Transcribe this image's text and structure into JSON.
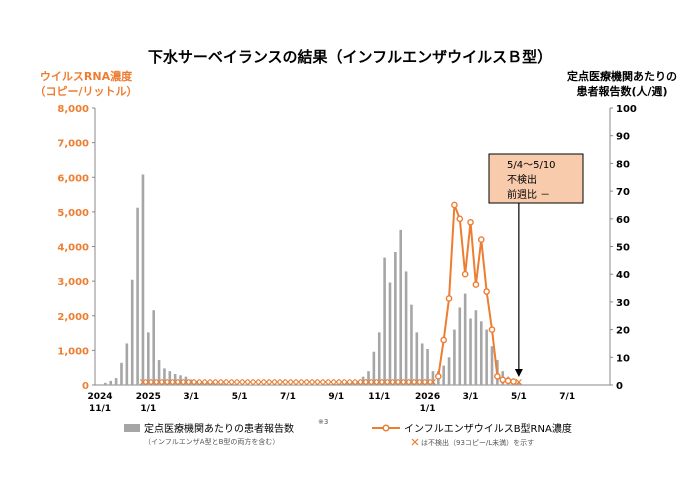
{
  "chart_data": {
    "type": "bar+line",
    "title": "下水サーベイランスの結果（インフルエンザウイルスＢ型）",
    "left_axis": {
      "title_lines": [
        "ウイルスRNA濃度",
        "（コピー/リットル）"
      ],
      "min": 0,
      "max": 8000,
      "ticks": [
        "0",
        "1,000",
        "2,000",
        "3,000",
        "4,000",
        "5,000",
        "6,000",
        "7,000",
        "8,000"
      ]
    },
    "right_axis": {
      "title_lines": [
        "定点医療機関あたりの",
        "患者報告数(人/週)"
      ],
      "min": 0,
      "max": 100,
      "ticks": [
        "0",
        "10",
        "20",
        "30",
        "40",
        "50",
        "60",
        "70",
        "80",
        "90",
        "100"
      ]
    },
    "x_tick_labels": [
      {
        "week": 0,
        "l1": "2024",
        "l2": "11/1"
      },
      {
        "week": 9,
        "l1": "2025",
        "l2": "1/1"
      },
      {
        "week": 17,
        "l1": "3/1",
        "l2": ""
      },
      {
        "week": 26,
        "l1": "5/1",
        "l2": ""
      },
      {
        "week": 35,
        "l1": "7/1",
        "l2": ""
      },
      {
        "week": 44,
        "l1": "9/1",
        "l2": ""
      },
      {
        "week": 52,
        "l1": "11/1",
        "l2": ""
      },
      {
        "week": 61,
        "l1": "2026",
        "l2": "1/1"
      },
      {
        "week": 69,
        "l1": "3/1",
        "l2": ""
      },
      {
        "week": 78,
        "l1": "5/1",
        "l2": ""
      },
      {
        "week": 87,
        "l1": "7/1",
        "l2": ""
      }
    ],
    "x_range": [
      0,
      91
    ],
    "bar_series": {
      "name": "定点医療機関あたりの患者報告数",
      "note": "※3",
      "sub": "（インフルエンザA型とB型の両方を含む）",
      "color": "#A6A6A6",
      "axis": "right",
      "weeks": [
        1,
        2,
        3,
        4,
        5,
        6,
        7,
        8,
        9,
        10,
        11,
        12,
        13,
        14,
        15,
        16,
        17,
        18,
        19,
        20,
        21,
        22,
        23,
        24,
        25,
        26,
        27,
        28,
        29,
        30,
        31,
        32,
        33,
        34,
        35,
        36,
        37,
        38,
        39,
        40,
        41,
        42,
        43,
        44,
        45,
        46,
        47,
        48,
        49,
        50,
        51,
        52,
        53,
        54,
        55,
        56,
        57,
        58,
        59,
        60,
        61,
        62,
        63,
        64,
        65,
        66,
        67,
        68,
        69,
        70,
        71,
        72,
        73,
        74,
        75,
        76,
        77,
        78
      ],
      "values": [
        0.8,
        1.5,
        2.5,
        8,
        15,
        38,
        64,
        76,
        19,
        27,
        9,
        6,
        5,
        4,
        3.5,
        3,
        2,
        1.5,
        1,
        1,
        0.8,
        0.5,
        0.5,
        0.3,
        0.3,
        0.2,
        0.2,
        0.2,
        0.2,
        0.2,
        0.2,
        0.2,
        0.2,
        0.2,
        0.2,
        0.2,
        0.2,
        0.2,
        0.2,
        0.2,
        0.2,
        0.3,
        0.3,
        0.4,
        0.5,
        0.7,
        1,
        1.5,
        3,
        5,
        12,
        19,
        46,
        37,
        48,
        56,
        41,
        29,
        19,
        15,
        13,
        5,
        5,
        7,
        10,
        20,
        28,
        33,
        24,
        27,
        23,
        20,
        14,
        9,
        5,
        3,
        1.5,
        1
      ]
    },
    "line_series": {
      "name": "インフルエンザウイルスB型RNA濃度",
      "color": "#ED7D31",
      "axis": "left",
      "weeks": [
        63,
        64,
        65,
        66,
        67,
        68,
        69,
        70,
        71,
        72,
        73,
        74,
        75,
        76,
        77
      ],
      "values": [
        250,
        1300,
        2500,
        5200,
        4800,
        3200,
        4700,
        2900,
        4200,
        2700,
        1600,
        250,
        150,
        120,
        100
      ]
    },
    "nondetect": {
      "label": "は不検出（93コピー/L未満）を示す",
      "weeks": [
        8,
        9,
        10,
        11,
        12,
        13,
        14,
        15,
        16,
        17,
        18,
        19,
        20,
        21,
        22,
        23,
        24,
        25,
        26,
        27,
        28,
        29,
        30,
        31,
        32,
        33,
        34,
        35,
        36,
        37,
        38,
        39,
        40,
        41,
        42,
        43,
        44,
        45,
        46,
        47,
        48,
        49,
        50,
        51,
        52,
        53,
        54,
        55,
        56,
        57,
        58,
        59,
        60,
        61,
        62,
        78
      ]
    },
    "annotation": {
      "lines": [
        "5/4～5/10",
        "不検出",
        "前週比 －"
      ],
      "week": 78,
      "fill": "#F8CBAD",
      "border": "#000000"
    }
  }
}
